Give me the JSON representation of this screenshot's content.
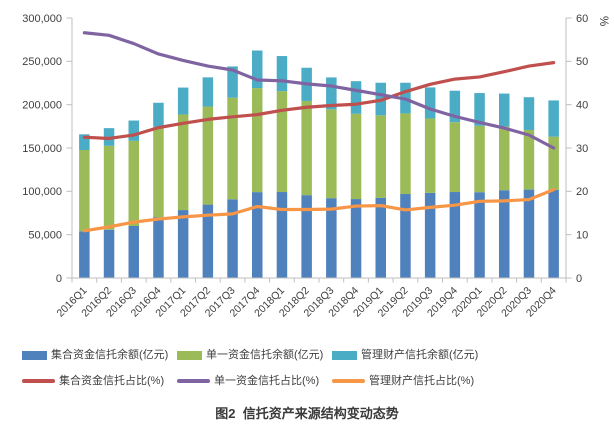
{
  "figure": {
    "caption": "图2  信托资产来源结构变动态势"
  },
  "chart_data": {
    "type": "combo-stacked-bar-line",
    "title": "图2 信托资产来源结构变动态势",
    "grid": false,
    "legend_position": "bottom",
    "categories": [
      "2016Q1",
      "2016Q2",
      "2016Q3",
      "2016Q4",
      "2017Q1",
      "2017Q2",
      "2017Q3",
      "2017Q4",
      "2018Q1",
      "2018Q2",
      "2018Q3",
      "2018Q4",
      "2019Q1",
      "2019Q2",
      "2019Q3",
      "2019Q4",
      "2020Q1",
      "2020Q2",
      "2020Q3",
      "2020Q4"
    ],
    "bar_series": [
      {
        "name": "集合资金信托余额(亿元)",
        "color": "#4F81BD",
        "values": [
          53900,
          55700,
          60000,
          70200,
          78400,
          84700,
          90800,
          99100,
          99200,
          95600,
          92100,
          91100,
          92400,
          96900,
          98300,
          99200,
          99000,
          101300,
          102000,
          101700
        ]
      },
      {
        "name": "单一资金信托余额(亿元)",
        "color": "#9BBB59",
        "values": [
          93800,
          96800,
          98300,
          104500,
          110300,
          113200,
          117200,
          120000,
          116400,
          108700,
          102500,
          98400,
          95300,
          93000,
          85800,
          80600,
          76600,
          73600,
          68800,
          61400
        ]
      },
      {
        "name": "管理财产信托余额(亿元)",
        "color": "#4BACC6",
        "values": [
          18100,
          20400,
          23400,
          27500,
          31000,
          33600,
          36100,
          43400,
          40500,
          38300,
          36800,
          37600,
          37600,
          35400,
          35800,
          36300,
          37800,
          37900,
          37800,
          41800
        ]
      }
    ],
    "line_series": [
      {
        "name": "集合资金信托占比(%)",
        "color": "#C0504D",
        "values": [
          32.5,
          32.2,
          33.0,
          34.7,
          35.7,
          36.6,
          37.2,
          37.7,
          38.7,
          39.4,
          39.8,
          40.1,
          41.0,
          43.0,
          44.7,
          45.9,
          46.4,
          47.6,
          48.9,
          49.7
        ]
      },
      {
        "name": "单一资金信托占比(%)",
        "color": "#8064A2",
        "values": [
          56.6,
          56.0,
          54.1,
          51.7,
          50.2,
          48.9,
          48.0,
          45.7,
          45.5,
          44.8,
          44.3,
          43.3,
          42.3,
          41.3,
          39.0,
          37.3,
          35.9,
          34.6,
          33.0,
          30.0
        ]
      },
      {
        "name": "管理财产信托占比(%)",
        "color": "#F79646",
        "values": [
          10.9,
          11.8,
          12.9,
          13.6,
          14.1,
          14.5,
          14.8,
          16.5,
          15.8,
          15.8,
          15.9,
          16.6,
          16.7,
          15.7,
          16.3,
          16.8,
          17.7,
          17.8,
          18.1,
          20.4
        ]
      }
    ],
    "left_axis": {
      "min": 0,
      "max": 300000,
      "step": 50000,
      "tick_labels": [
        "0",
        "50,000",
        "100,000",
        "150,000",
        "200,000",
        "250,000",
        "300,000"
      ]
    },
    "right_axis": {
      "min": 0,
      "max": 60,
      "step": 10,
      "unit": "%",
      "tick_labels": [
        "0",
        "10",
        "20",
        "30",
        "40",
        "50",
        "60"
      ]
    }
  }
}
